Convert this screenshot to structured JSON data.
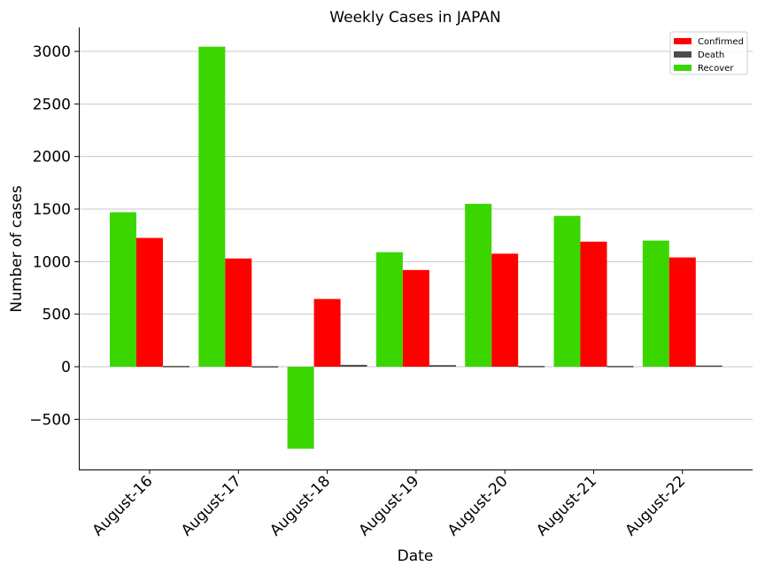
{
  "chart_data": {
    "type": "bar",
    "title": "Weekly Cases in JAPAN",
    "xlabel": "Date",
    "ylabel": "Number of cases",
    "categories": [
      "August-16",
      "August-17",
      "August-18",
      "August-19",
      "August-20",
      "August-21",
      "August-22"
    ],
    "series": [
      {
        "name": "Recover",
        "color": "#3bd600",
        "values": [
          1470,
          3045,
          -780,
          1090,
          1550,
          1435,
          1200
        ]
      },
      {
        "name": "Confirmed",
        "color": "#ff0000",
        "values": [
          1225,
          1030,
          645,
          920,
          1075,
          1190,
          1040
        ]
      },
      {
        "name": "Death",
        "color": "#4d4d4d",
        "values": [
          8,
          5,
          18,
          15,
          8,
          8,
          12
        ]
      }
    ],
    "legend_order": [
      "Confirmed",
      "Death",
      "Recover"
    ],
    "legend_position": "top-right",
    "yticks": [
      -500,
      0,
      500,
      1000,
      1500,
      2000,
      2500,
      3000
    ],
    "ytick_labels": [
      "−500",
      "0",
      "500",
      "1000",
      "1500",
      "2000",
      "2500",
      "3000"
    ],
    "ylim": [
      -975,
      3230
    ],
    "grid": "horizontal"
  }
}
